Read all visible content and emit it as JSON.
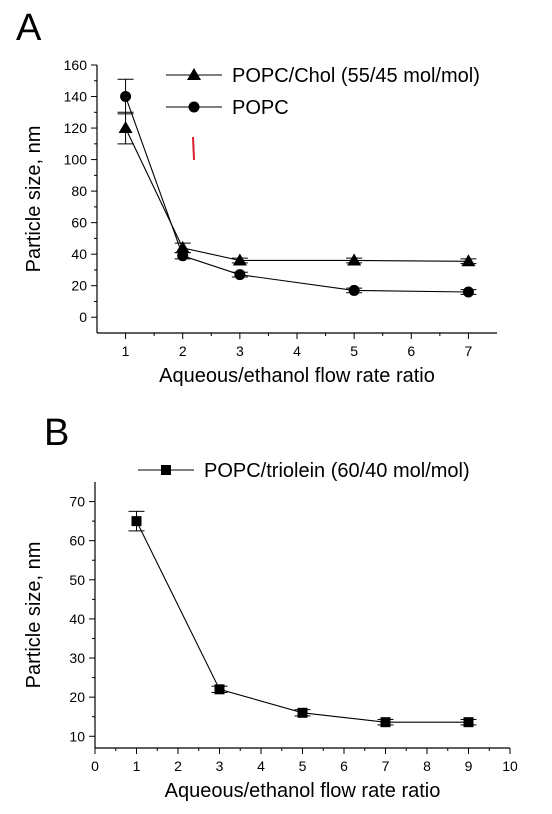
{
  "chart_data": [
    {
      "panel": "A",
      "type": "line",
      "xlabel": "Aqueous/ethanol flow rate ratio",
      "ylabel": "Particle size, nm",
      "xlim": [
        0.5,
        7.5
      ],
      "ylim": [
        -10,
        160
      ],
      "xticks": [
        1,
        2,
        3,
        4,
        5,
        6,
        7
      ],
      "yticks": [
        0,
        20,
        40,
        60,
        80,
        100,
        120,
        140,
        160
      ],
      "legend_position": "top-right",
      "grid": false,
      "series": [
        {
          "name": "POPC/Chol (55/45 mol/mol)",
          "marker": "triangle",
          "x": [
            1,
            2,
            3,
            5,
            7
          ],
          "y": [
            120,
            44,
            36,
            36,
            35.5
          ],
          "error": [
            10,
            3,
            1.5,
            1.5,
            1.5
          ]
        },
        {
          "name": "POPC",
          "marker": "circle",
          "x": [
            1,
            2,
            3,
            5,
            7
          ],
          "y": [
            140,
            39,
            27,
            17,
            16
          ],
          "error": [
            11,
            2,
            1.5,
            1.5,
            1.5
          ]
        }
      ]
    },
    {
      "panel": "B",
      "type": "line",
      "xlabel": "Aqueous/ethanol flow rate ratio",
      "ylabel": "Particle size, nm",
      "xlim": [
        0,
        10
      ],
      "ylim": [
        7,
        75
      ],
      "xticks": [
        0,
        1,
        2,
        3,
        4,
        5,
        6,
        7,
        8,
        9,
        10
      ],
      "yticks": [
        10,
        20,
        30,
        40,
        50,
        60,
        70
      ],
      "legend_position": "top-right",
      "grid": false,
      "series": [
        {
          "name": "POPC/triolein (60/40 mol/mol)",
          "marker": "square",
          "x": [
            1,
            3,
            5,
            7,
            9
          ],
          "y": [
            65,
            22,
            16,
            13.6,
            13.6
          ],
          "error": [
            2.5,
            0.8,
            0.8,
            0.7,
            0.7
          ]
        }
      ]
    }
  ],
  "annotation_color": "#d9202a",
  "line_color": "#000000"
}
